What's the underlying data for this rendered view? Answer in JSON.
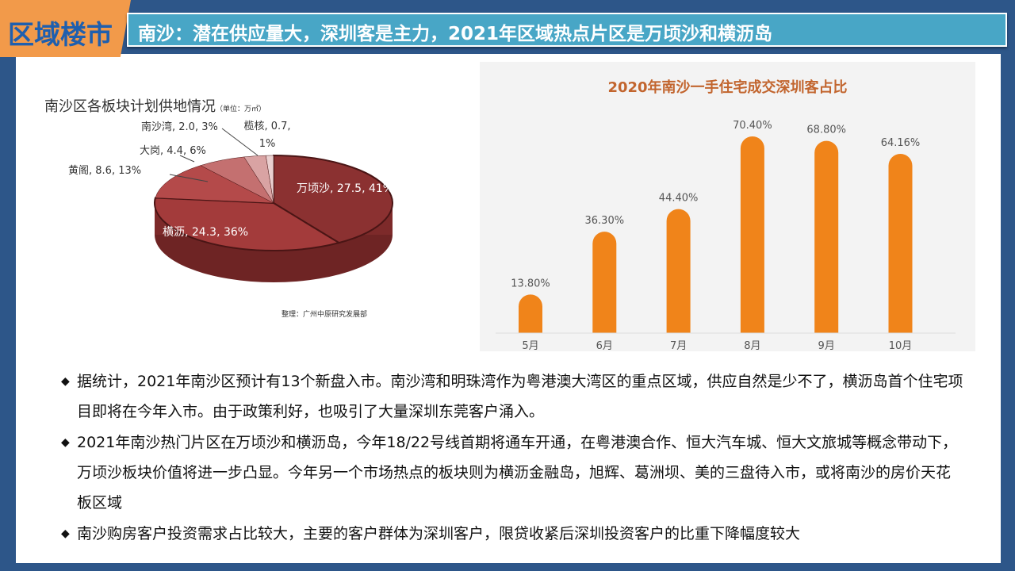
{
  "header": {
    "tag": "区域楼市",
    "title": "南沙：潜在供应量大，深圳客是主力，2021年区域热点片区是万顷沙和横沥岛"
  },
  "chart_data": [
    {
      "type": "pie",
      "title": "南沙区各板块计划供地情况",
      "unit": "（单位：万㎡）",
      "source": "整理：广州中原研究发展部",
      "slices": [
        {
          "name": "万顷沙",
          "value": 27.5,
          "percent": 41,
          "label": "万顷沙, 27.5, 41%",
          "color": "#8b3131"
        },
        {
          "name": "横沥",
          "value": 24.3,
          "percent": 36,
          "label": "横沥, 24.3, 36%",
          "color": "#a33b3b"
        },
        {
          "name": "黄阁",
          "value": 8.6,
          "percent": 13,
          "label": "黄阁, 8.6, 13%",
          "color": "#b44a4a"
        },
        {
          "name": "大岗",
          "value": 4.4,
          "percent": 6,
          "label": "大岗, 4.4, 6%",
          "color": "#c47070"
        },
        {
          "name": "南沙湾",
          "value": 2.0,
          "percent": 3,
          "label": "南沙湾, 2.0, 3%",
          "color": "#d9a3a3"
        },
        {
          "name": "榄核",
          "value": 0.7,
          "percent": 1,
          "label": "榄核, 0.7, 1%",
          "color": "#ead0d0"
        }
      ]
    },
    {
      "type": "bar",
      "title": "2020年南沙一手住宅成交深圳客占比",
      "color": "#f0841a",
      "categories": [
        "5月",
        "6月",
        "7月",
        "8月",
        "9月",
        "10月"
      ],
      "values": [
        13.8,
        36.3,
        44.4,
        70.4,
        68.8,
        64.16
      ],
      "labels": [
        "13.80%",
        "36.30%",
        "44.40%",
        "70.40%",
        "68.80%",
        "64.16%"
      ],
      "ylim": [
        0,
        80
      ]
    }
  ],
  "bullets": [
    "据统计，2021年南沙区预计有13个新盘入市。南沙湾和明珠湾作为粤港澳大湾区的重点区域，供应自然是少不了，横沥岛首个住宅项目即将在今年入市。由于政策利好，也吸引了大量深圳东莞客户涌入。",
    "2021年南沙热门片区在万顷沙和横沥岛，今年18/22号线首期将通车开通，在粤港澳合作、恒大汽车城、恒大文旅城等概念带动下，万顷沙板块价值将进一步凸显。今年另一个市场热点的板块则为横沥金融岛，旭辉、葛洲坝、美的三盘待入市，或将南沙的房价天花板区域",
    "南沙购房客户投资需求占比较大，主要的客户群体为深圳客户，限贷收紧后深圳投资客户的比重下降幅度较大"
  ],
  "bullet_icon": "diamond-icon"
}
